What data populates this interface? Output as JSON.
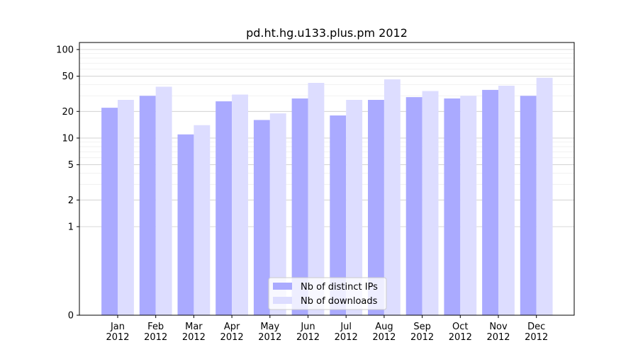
{
  "chart_data": {
    "type": "bar",
    "title": "pd.ht.hg.u133.plus.pm 2012",
    "xlabel": "",
    "ylabel": "",
    "yscale": "symlog",
    "ylim": [
      0,
      120
    ],
    "yticks": [
      0,
      1,
      2,
      5,
      10,
      20,
      50,
      100
    ],
    "ytick_labels": [
      "0",
      "1",
      "2",
      "5",
      "10",
      "20",
      "50",
      "100"
    ],
    "categories": [
      "Jan\n2012",
      "Feb\n2012",
      "Mar\n2012",
      "Apr\n2012",
      "May\n2012",
      "Jun\n2012",
      "Jul\n2012",
      "Aug\n2012",
      "Sep\n2012",
      "Oct\n2012",
      "Nov\n2012",
      "Dec\n2012"
    ],
    "series": [
      {
        "name": "Nb of distinct IPs",
        "color": "#aaaaff",
        "values": [
          22,
          30,
          11,
          26,
          16,
          28,
          18,
          27,
          29,
          28,
          35,
          30
        ]
      },
      {
        "name": "Nb of downloads",
        "color": "#ddddff",
        "values": [
          27,
          38,
          14,
          31,
          19,
          42,
          27,
          46,
          34,
          30,
          39,
          48
        ]
      }
    ],
    "grid": true,
    "legend": "bottom-center"
  }
}
